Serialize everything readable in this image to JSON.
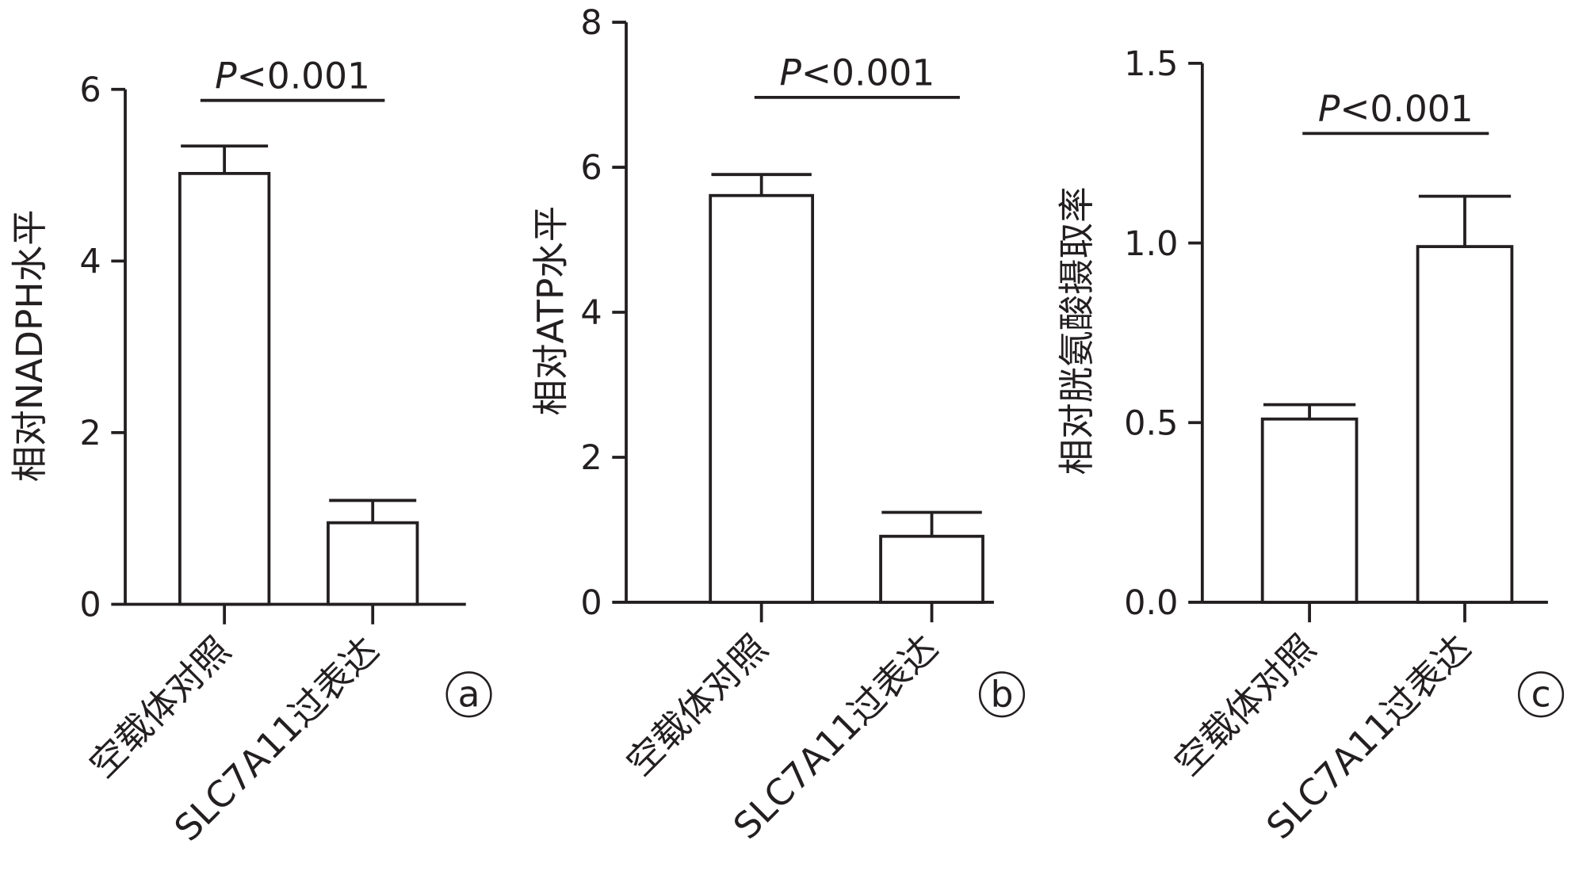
{
  "chart_data": [
    {
      "type": "bar",
      "panel_letter": "a",
      "ylabel": "相对NADPH水平",
      "ylim": [
        0,
        6
      ],
      "yticks": [
        "0",
        "2",
        "4",
        "6"
      ],
      "categories": [
        "空载体对照",
        "SLC7A11过表达"
      ],
      "values": [
        5.02,
        0.95
      ],
      "errors": [
        0.32,
        0.26
      ],
      "annotation": {
        "italic": "P",
        "text": "<0.001"
      }
    },
    {
      "type": "bar",
      "panel_letter": "b",
      "ylabel": "相对ATP水平",
      "ylim": [
        0,
        8
      ],
      "yticks": [
        "0",
        "2",
        "4",
        "6",
        "8"
      ],
      "categories": [
        "空载体对照",
        "SLC7A11过表达"
      ],
      "values": [
        5.61,
        0.91
      ],
      "errors": [
        0.29,
        0.33
      ],
      "annotation": {
        "italic": "P",
        "text": "<0.001"
      }
    },
    {
      "type": "bar",
      "panel_letter": "c",
      "ylabel": "相对胱氨酸摄取率",
      "ylim": [
        0,
        1.5
      ],
      "yticks": [
        "0.0",
        "0.5",
        "1.0",
        "1.5"
      ],
      "categories": [
        "空载体对照",
        "SLC7A11过表达"
      ],
      "values": [
        0.51,
        0.99
      ],
      "errors": [
        0.04,
        0.14
      ],
      "annotation": {
        "italic": "P",
        "text": "<0.001"
      }
    }
  ]
}
